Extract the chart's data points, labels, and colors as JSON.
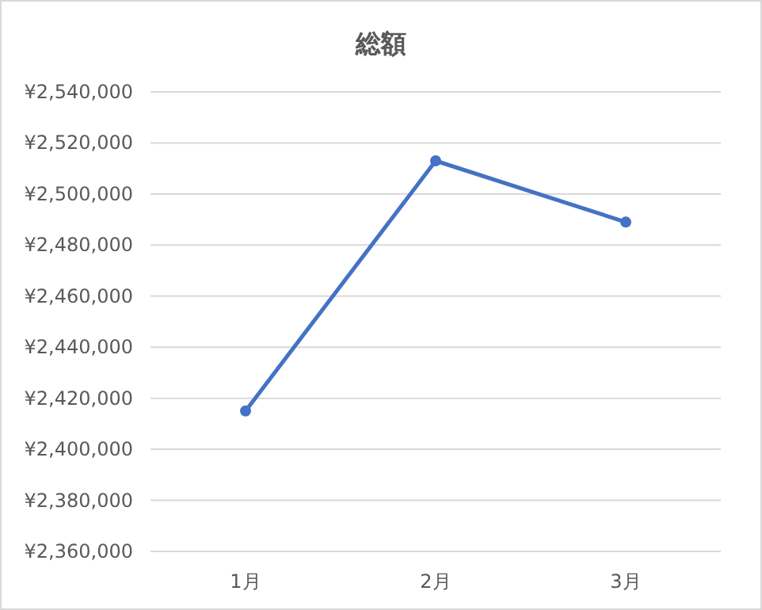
{
  "chart_data": {
    "type": "line",
    "title": "総額",
    "categories": [
      "1月",
      "2月",
      "3月"
    ],
    "series": [
      {
        "color": "#4472c4",
        "values": [
          2415000,
          2513000,
          2489000
        ]
      }
    ],
    "ylim": [
      2360000,
      2540000
    ],
    "yticks": [
      {
        "value": 2360000,
        "label": "¥2,360,000"
      },
      {
        "value": 2380000,
        "label": "¥2,380,000"
      },
      {
        "value": 2400000,
        "label": "¥2,400,000"
      },
      {
        "value": 2420000,
        "label": "¥2,420,000"
      },
      {
        "value": 2440000,
        "label": "¥2,440,000"
      },
      {
        "value": 2460000,
        "label": "¥2,460,000"
      },
      {
        "value": 2480000,
        "label": "¥2,480,000"
      },
      {
        "value": 2500000,
        "label": "¥2,500,000"
      },
      {
        "value": 2520000,
        "label": "¥2,520,000"
      },
      {
        "value": 2540000,
        "label": "¥2,540,000"
      }
    ],
    "grid": "y",
    "marker": "circle"
  }
}
